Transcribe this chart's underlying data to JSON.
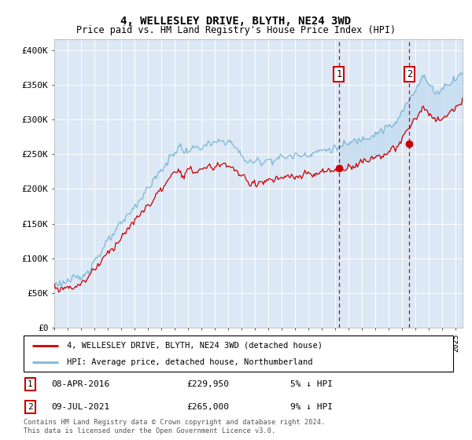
{
  "title": "4, WELLESLEY DRIVE, BLYTH, NE24 3WD",
  "subtitle": "Price paid vs. HM Land Registry's House Price Index (HPI)",
  "ylabel_ticks": [
    "£0",
    "£50K",
    "£100K",
    "£150K",
    "£200K",
    "£250K",
    "£300K",
    "£350K",
    "£400K"
  ],
  "ytick_values": [
    0,
    50000,
    100000,
    150000,
    200000,
    250000,
    300000,
    350000,
    400000
  ],
  "ylim": [
    0,
    415000
  ],
  "xlim": [
    1995,
    2025.5
  ],
  "sale1_x": 2016.27,
  "sale1_y": 229950,
  "sale2_x": 2021.52,
  "sale2_y": 265000,
  "legend_line1": "4, WELLESLEY DRIVE, BLYTH, NE24 3WD (detached house)",
  "legend_line2": "HPI: Average price, detached house, Northumberland",
  "footnote": "Contains HM Land Registry data © Crown copyright and database right 2024.\nThis data is licensed under the Open Government Licence v3.0.",
  "hpi_color": "#7ab8d9",
  "price_color": "#cc0000",
  "bg_color": "#dce8f5",
  "grid_color": "#ffffff",
  "shade_color": "#c5ddf0",
  "dashed_color": "#cc0000",
  "title_fontsize": 10,
  "subtitle_fontsize": 8.5
}
